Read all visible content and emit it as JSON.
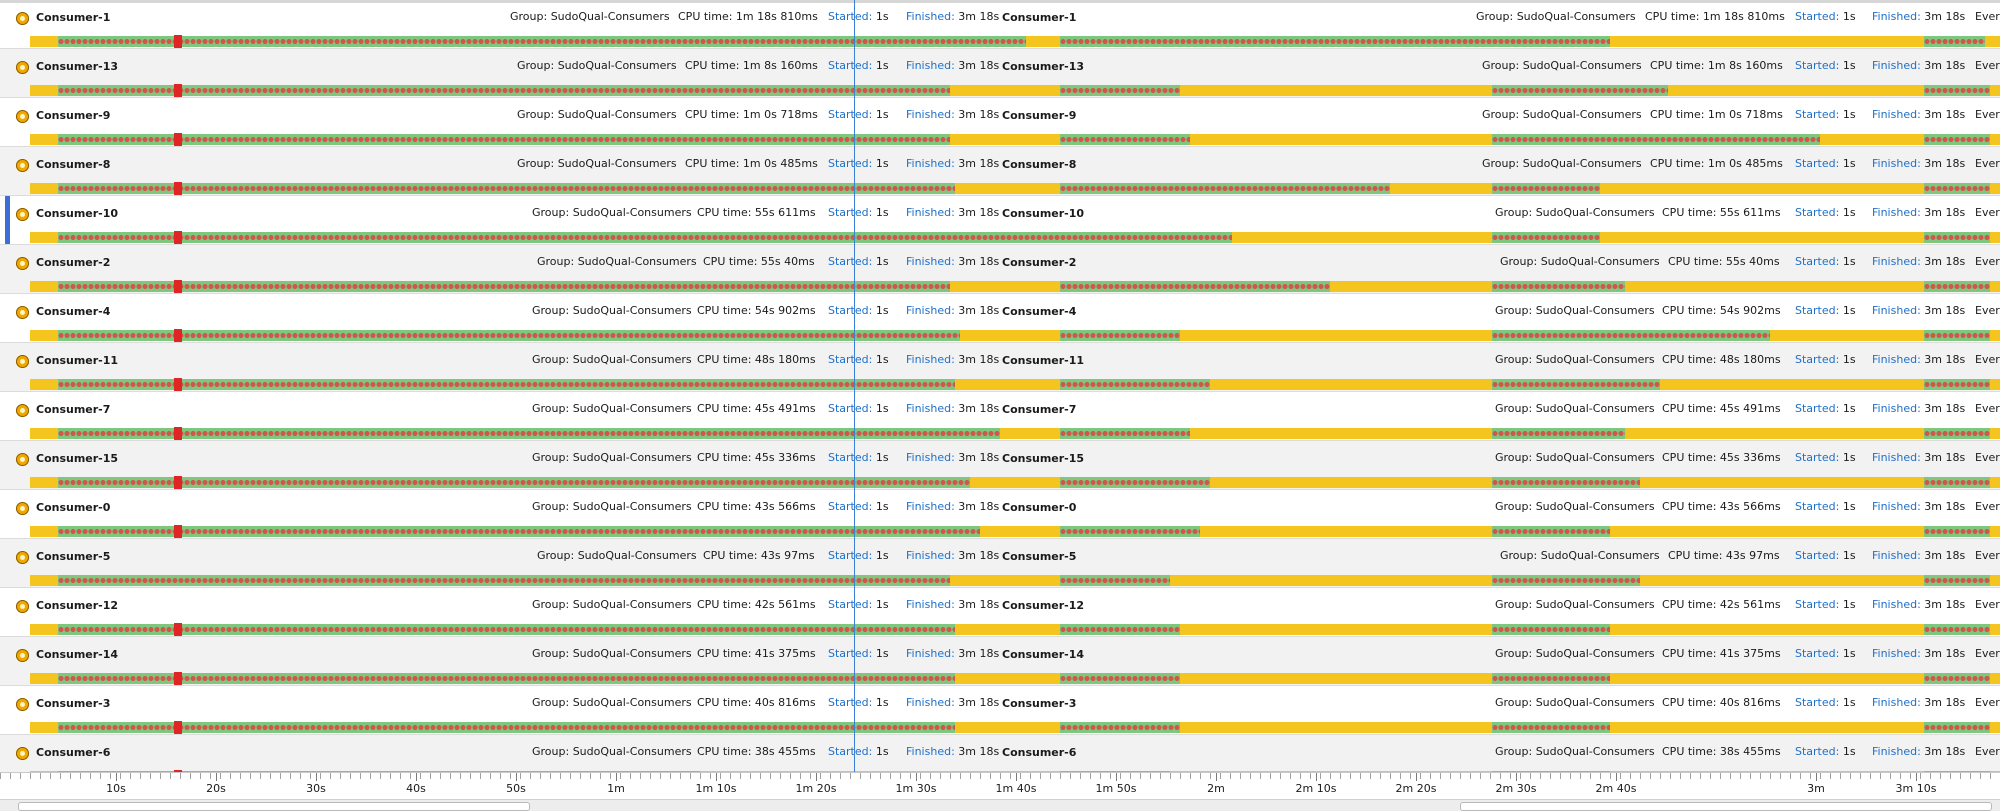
{
  "labels": {
    "group_prefix": "Group:",
    "cpu_prefix": "CPU time:",
    "started": "Started:",
    "finished": "Finished:",
    "events": "Ever"
  },
  "group": "SudoQual-Consumers",
  "started_value": "1s",
  "finished_value": "3m 18s",
  "threads": [
    {
      "name": "Consumer-1",
      "cpu": "1m 18s 810ms"
    },
    {
      "name": "Consumer-13",
      "cpu": "1m 8s 160ms"
    },
    {
      "name": "Consumer-9",
      "cpu": "1m 0s 718ms"
    },
    {
      "name": "Consumer-8",
      "cpu": "1m 0s 485ms"
    },
    {
      "name": "Consumer-10",
      "cpu": "55s 611ms"
    },
    {
      "name": "Consumer-2",
      "cpu": "55s 40ms"
    },
    {
      "name": "Consumer-4",
      "cpu": "54s 902ms"
    },
    {
      "name": "Consumer-11",
      "cpu": "48s 180ms"
    },
    {
      "name": "Consumer-7",
      "cpu": "45s 491ms"
    },
    {
      "name": "Consumer-15",
      "cpu": "45s 336ms"
    },
    {
      "name": "Consumer-0",
      "cpu": "43s 566ms"
    },
    {
      "name": "Consumer-5",
      "cpu": "43s 97ms"
    },
    {
      "name": "Consumer-12",
      "cpu": "42s 561ms"
    },
    {
      "name": "Consumer-14",
      "cpu": "41s 375ms"
    },
    {
      "name": "Consumer-3",
      "cpu": "40s 816ms"
    },
    {
      "name": "Consumer-6",
      "cpu": "38s 455ms"
    }
  ],
  "axis_ticks": [
    "10s",
    "20s",
    "30s",
    "40s",
    "50s",
    "1m",
    "1m 10s",
    "1m 20s",
    "1m 30s",
    "1m 40s",
    "1m 50s",
    "2m",
    "2m 10s",
    "2m 20s",
    "2m 30s",
    "2m 40s",
    "3m",
    "3m 10s"
  ],
  "colors": {
    "running": "#7fc77f",
    "idle": "#f4c51f",
    "marker": "#e02525",
    "accent": "#1f6fc8",
    "selection": "#3b6fd6"
  },
  "icons": {
    "thread": "thread-gear-icon"
  }
}
